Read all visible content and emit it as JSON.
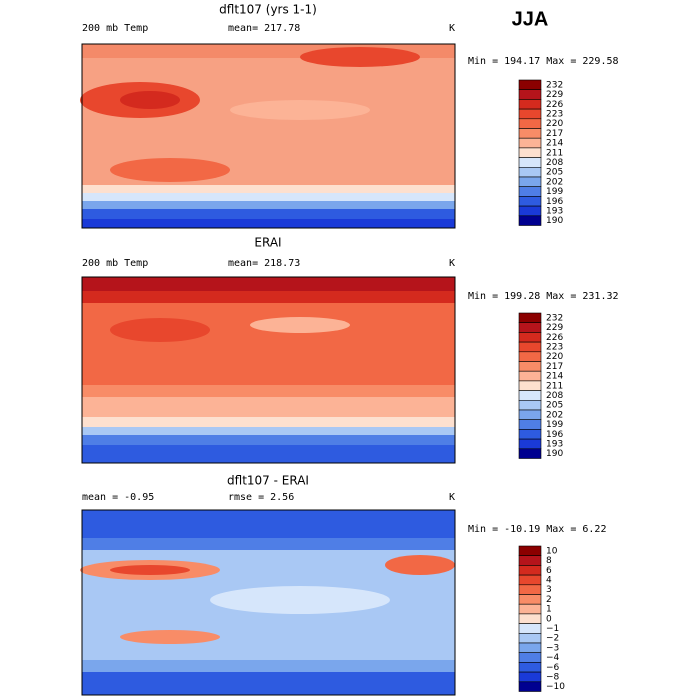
{
  "season": "JJA",
  "panels": [
    {
      "title": "dflt107 (yrs 1-1)",
      "left": "200 mb Temp",
      "center": "mean= 217.78",
      "unit": "K",
      "minmax": "Min = 194.17 Max = 229.58",
      "colorbar": {
        "labels": [
          "232",
          "229",
          "226",
          "223",
          "220",
          "217",
          "214",
          "211",
          "208",
          "205",
          "202",
          "199",
          "196",
          "193",
          "190"
        ],
        "colors": [
          "#8b0000",
          "#b5141b",
          "#d42a1e",
          "#e8472d",
          "#f26845",
          "#f88c67",
          "#fcb396",
          "#fde0cf",
          "#d6e6fb",
          "#a9c8f4",
          "#7aa6ec",
          "#4f7ee6",
          "#2e5be0",
          "#1a3ad8",
          "#000090"
        ]
      }
    },
    {
      "title": "ERAI",
      "left": "200 mb Temp",
      "center": "mean= 218.73",
      "unit": "K",
      "minmax": "Min = 199.28 Max = 231.32",
      "colorbar": {
        "labels": [
          "232",
          "229",
          "226",
          "223",
          "220",
          "217",
          "214",
          "211",
          "208",
          "205",
          "202",
          "199",
          "196",
          "193",
          "190"
        ],
        "colors": [
          "#8b0000",
          "#b5141b",
          "#d42a1e",
          "#e8472d",
          "#f26845",
          "#f88c67",
          "#fcb396",
          "#fde0cf",
          "#d6e6fb",
          "#a9c8f4",
          "#7aa6ec",
          "#4f7ee6",
          "#2e5be0",
          "#1a3ad8",
          "#000090"
        ]
      }
    },
    {
      "title": "dflt107 - ERAI",
      "left": "mean =   -0.95",
      "center": "rmse =    2.56",
      "unit": "K",
      "minmax": "Min = -10.19 Max =   6.22",
      "colorbar": {
        "labels": [
          "10",
          "8",
          "6",
          "4",
          "3",
          "2",
          "1",
          "0",
          "−1",
          "−2",
          "−3",
          "−4",
          "−6",
          "−8",
          "−10"
        ],
        "colors": [
          "#8b0000",
          "#b5141b",
          "#d42a1e",
          "#e8472d",
          "#f26845",
          "#f88c67",
          "#fcb396",
          "#fde0cf",
          "#d6e6fb",
          "#a9c8f4",
          "#7aa6ec",
          "#4f7ee6",
          "#2e5be0",
          "#1a3ad8",
          "#000090"
        ]
      }
    }
  ]
}
